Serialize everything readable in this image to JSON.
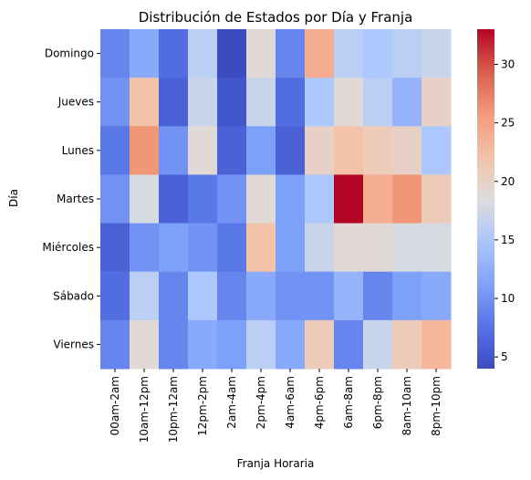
{
  "chart_data": {
    "type": "heatmap",
    "title": "Distribución de Estados por Día y Franja",
    "xlabel": "Franja Horaria",
    "ylabel": "Día",
    "x_categories": [
      "00am-2am",
      "10am-12pm",
      "10pm-12am",
      "12pm-2pm",
      "2am-4am",
      "2pm-4pm",
      "4am-6am",
      "4pm-6pm",
      "6am-8am",
      "6pm-8pm",
      "8am-10am",
      "8pm-10pm"
    ],
    "y_categories": [
      "Domingo",
      "Jueves",
      "Lunes",
      "Martes",
      "Miércoles",
      "Sábado",
      "Viernes"
    ],
    "values": [
      [
        9,
        12,
        7,
        16,
        4,
        19,
        9,
        24,
        16,
        15,
        16,
        17
      ],
      [
        10,
        22,
        6,
        17,
        5,
        17,
        7,
        15,
        19,
        16,
        13,
        20
      ],
      [
        8,
        26,
        10,
        19,
        6,
        11,
        6,
        20,
        22,
        21,
        20,
        15
      ],
      [
        10,
        18,
        6,
        8,
        10,
        19,
        11,
        15,
        33,
        24,
        26,
        21
      ],
      [
        6,
        10,
        11,
        10,
        8,
        22,
        11,
        17,
        19,
        19,
        18,
        18
      ],
      [
        7,
        16,
        9,
        15,
        9,
        12,
        10,
        10,
        13,
        9,
        11,
        12
      ],
      [
        9,
        19,
        9,
        12,
        11,
        16,
        12,
        21,
        9,
        17,
        21,
        23
      ]
    ],
    "colorbar": {
      "colormap": "coolwarm",
      "min": 4,
      "max": 33,
      "ticks": [
        5,
        10,
        15,
        20,
        25,
        30
      ]
    }
  }
}
